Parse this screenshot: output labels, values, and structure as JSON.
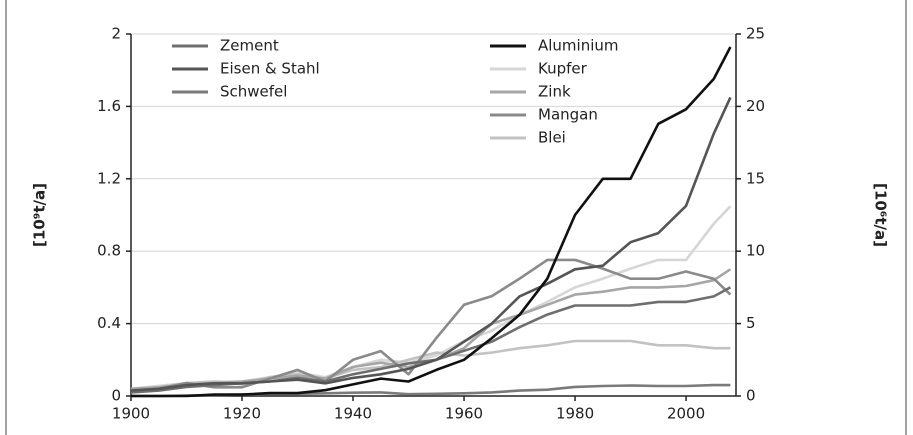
{
  "chart_data": {
    "type": "line",
    "y_label": "[10⁹t/a]",
    "y2_label": "[10⁶t/a]",
    "x": [
      1900,
      1905,
      1910,
      1915,
      1920,
      1925,
      1930,
      1935,
      1940,
      1945,
      1950,
      1955,
      1960,
      1965,
      1970,
      1975,
      1980,
      1985,
      1990,
      1995,
      2000,
      2005,
      2008
    ],
    "xlim": [
      1900,
      2009
    ],
    "xticks": [
      1900,
      1920,
      1940,
      1960,
      1980,
      2000
    ],
    "ylim": [
      0,
      2
    ],
    "yticks": [
      0,
      0.4,
      0.8,
      1.2,
      1.6,
      2
    ],
    "y2lim": [
      0,
      25
    ],
    "y2ticks": [
      0,
      5,
      10,
      15,
      20,
      25
    ],
    "grid": true,
    "series": [
      {
        "name": "Zement",
        "color": "#6e6e6e",
        "values": [
          0.02,
          0.03,
          0.05,
          0.06,
          0.07,
          0.08,
          0.1,
          0.08,
          0.12,
          0.15,
          0.18,
          0.2,
          0.25,
          0.3,
          0.38,
          0.45,
          0.5,
          0.5,
          0.5,
          0.52,
          0.52,
          0.55,
          0.6
        ]
      },
      {
        "name": "Eisen & Stahl",
        "color": "#555555",
        "values": [
          0.03,
          0.04,
          0.06,
          0.07,
          0.07,
          0.08,
          0.09,
          0.07,
          0.1,
          0.12,
          0.15,
          0.2,
          0.3,
          0.4,
          0.55,
          0.62,
          0.7,
          0.72,
          0.85,
          0.9,
          1.05,
          1.45,
          1.65
        ]
      },
      {
        "name": "Schwefel",
        "color": "#7a7a7a",
        "values": [
          0,
          0,
          0.002,
          0.005,
          0.008,
          0.01,
          0.012,
          0.015,
          0.018,
          0.02,
          0.01,
          0.012,
          0.015,
          0.02,
          0.03,
          0.035,
          0.05,
          0.055,
          0.058,
          0.055,
          0.055,
          0.06,
          0.06
        ]
      },
      {
        "name": "Aluminium",
        "color": "#111111",
        "axis": "y2",
        "values": [
          0,
          0,
          0,
          0.1,
          0.1,
          0.2,
          0.2,
          0.4,
          0.8,
          1.2,
          1.0,
          1.8,
          2.5,
          4.0,
          5.6,
          8.1,
          12.5,
          15,
          15,
          18.8,
          19.8,
          21.9,
          24.1
        ]
      },
      {
        "name": "Kupfer",
        "color": "#d6d6d6",
        "axis": "y2",
        "values": [
          0.5,
          0.7,
          0.9,
          1.0,
          1.0,
          1.3,
          1.6,
          1.3,
          2.0,
          2.5,
          2.3,
          2.8,
          3.8,
          4.5,
          5.6,
          6.5,
          7.5,
          8.1,
          8.8,
          9.4,
          9.4,
          11.9,
          13.1
        ]
      },
      {
        "name": "Zink",
        "color": "#a6a6a6",
        "axis": "y2",
        "values": [
          0.5,
          0.6,
          0.8,
          0.9,
          1.0,
          1.2,
          1.4,
          1.2,
          2.0,
          2.3,
          2.0,
          2.5,
          3.3,
          5.0,
          5.6,
          6.3,
          7.0,
          7.2,
          7.5,
          7.5,
          7.6,
          8.0,
          8.75
        ]
      },
      {
        "name": "Mangan",
        "color": "#8a8a8a",
        "axis": "y2",
        "values": [
          0.3,
          0.5,
          0.9,
          0.6,
          0.6,
          1.2,
          1.8,
          1.0,
          2.5,
          3.1,
          1.5,
          4.0,
          6.3,
          6.9,
          8.1,
          9.4,
          9.4,
          8.8,
          8.1,
          8.1,
          8.6,
          8.1,
          7.0
        ]
      },
      {
        "name": "Blei",
        "color": "#c2c2c2",
        "axis": "y2",
        "values": [
          0.5,
          0.6,
          0.9,
          1.0,
          0.8,
          1.3,
          1.5,
          1.2,
          1.8,
          2.0,
          2.5,
          3.0,
          2.8,
          3.0,
          3.3,
          3.5,
          3.8,
          3.8,
          3.8,
          3.5,
          3.5,
          3.3,
          3.3
        ]
      }
    ]
  }
}
